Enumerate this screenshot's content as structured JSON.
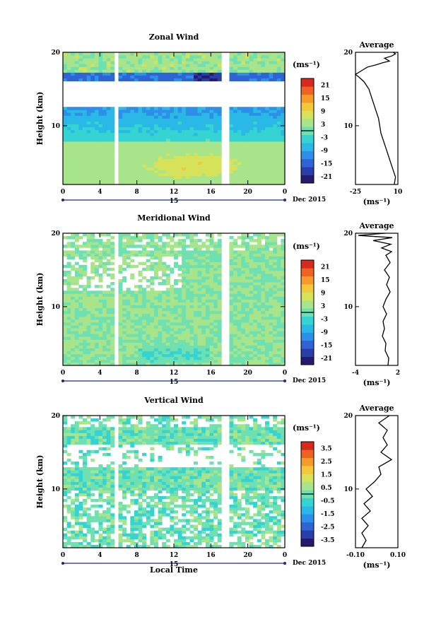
{
  "chart_data": [
    {
      "type": "heatmap",
      "title": "Zonal Wind",
      "ylabel": "Height (km)",
      "ylim": [
        2,
        20
      ],
      "y_ticks": [
        "20",
        "10"
      ],
      "xlim": [
        0,
        24
      ],
      "x_ticks": [
        "0",
        "4",
        "8",
        "12",
        "16",
        "20",
        "0"
      ],
      "date_day": "15",
      "date_label": "Dec 2015",
      "colorbar": {
        "unit": "(ms⁻¹)",
        "ticks": [
          "21",
          "15",
          "9",
          "3",
          "-3",
          "-9",
          "-15",
          "-21"
        ],
        "range": [
          -24,
          24
        ]
      },
      "profile": {
        "title": "Average",
        "yticks": [
          "20",
          "10"
        ],
        "xticks": [
          "-25",
          "10"
        ],
        "xlim": [
          -25,
          10
        ],
        "unit": "(ms⁻¹)",
        "points": [
          [
            7,
            2
          ],
          [
            8,
            3
          ],
          [
            6,
            4
          ],
          [
            4,
            5
          ],
          [
            2,
            6
          ],
          [
            0,
            7
          ],
          [
            -2,
            8
          ],
          [
            -4,
            9
          ],
          [
            -5,
            10
          ],
          [
            -6,
            11
          ],
          [
            -8,
            12
          ],
          [
            -10,
            13
          ],
          [
            -12,
            14
          ],
          [
            -14,
            15
          ],
          [
            -18,
            16
          ],
          [
            -22,
            16.6
          ],
          [
            -25,
            17
          ],
          [
            -20,
            17.5
          ],
          [
            -15,
            18
          ],
          [
            -8,
            18.3
          ],
          [
            -2,
            18.6
          ],
          [
            3,
            18.8
          ],
          [
            -1,
            19.2
          ],
          [
            5,
            19.5
          ],
          [
            8,
            19.8
          ],
          [
            6,
            20
          ]
        ]
      }
    },
    {
      "type": "heatmap",
      "title": "Meridional Wind",
      "ylabel": "Height (km)",
      "ylim": [
        2,
        20
      ],
      "y_ticks": [
        "20",
        "10"
      ],
      "xlim": [
        0,
        24
      ],
      "x_ticks": [
        "0",
        "4",
        "8",
        "12",
        "16",
        "20",
        "0"
      ],
      "date_day": "15",
      "date_label": "Dec 2015",
      "colorbar": {
        "unit": "(ms⁻¹)",
        "ticks": [
          "21",
          "15",
          "9",
          "3",
          "-3",
          "-9",
          "-15",
          "-21"
        ],
        "range": [
          -24,
          24
        ]
      },
      "profile": {
        "title": "Average",
        "yticks": [
          "20",
          "10"
        ],
        "xticks": [
          "-4",
          "2"
        ],
        "xlim": [
          -4,
          2
        ],
        "unit": "(ms⁻¹)",
        "points": [
          [
            0.6,
            2
          ],
          [
            0.7,
            3
          ],
          [
            0.2,
            4
          ],
          [
            0.3,
            5
          ],
          [
            -0.2,
            6
          ],
          [
            0.1,
            7
          ],
          [
            -0.1,
            8
          ],
          [
            0.4,
            9
          ],
          [
            -0.1,
            10
          ],
          [
            0.3,
            11
          ],
          [
            0.9,
            12
          ],
          [
            0.4,
            13
          ],
          [
            0.8,
            14
          ],
          [
            0.1,
            15
          ],
          [
            0.9,
            16
          ],
          [
            0.3,
            17
          ],
          [
            1.1,
            17.5
          ],
          [
            -0.3,
            18
          ],
          [
            1.0,
            18.5
          ],
          [
            -1.5,
            19
          ],
          [
            1.2,
            19.4
          ],
          [
            -3.6,
            19.7
          ],
          [
            0.2,
            20
          ]
        ]
      }
    },
    {
      "type": "heatmap",
      "title": "Vertical Wind",
      "ylabel": "Height (km)",
      "ylim": [
        2,
        20
      ],
      "y_ticks": [
        "20",
        "10"
      ],
      "xlim": [
        0,
        24
      ],
      "x_ticks": [
        "0",
        "4",
        "8",
        "12",
        "16",
        "20",
        "0"
      ],
      "date_day": "15",
      "date_label": "Dec 2015",
      "xlabel": "Local Time",
      "colorbar": {
        "unit": "(ms⁻¹)",
        "ticks": [
          "3.5",
          "2.5",
          "1.5",
          "0.5",
          "-0.5",
          "-1.5",
          "-2.5",
          "-3.5"
        ],
        "range": [
          -4,
          4
        ]
      },
      "profile": {
        "title": "Average",
        "yticks": [
          "20",
          "10"
        ],
        "xticks": [
          "-0.10",
          "0.10"
        ],
        "xlim": [
          -0.1,
          0.1
        ],
        "unit": "(ms⁻¹)",
        "points": [
          [
            -0.07,
            2
          ],
          [
            -0.05,
            3
          ],
          [
            -0.07,
            4
          ],
          [
            -0.04,
            5
          ],
          [
            -0.07,
            6
          ],
          [
            -0.03,
            7
          ],
          [
            -0.06,
            8
          ],
          [
            -0.02,
            9
          ],
          [
            -0.05,
            10
          ],
          [
            -0.01,
            11
          ],
          [
            0.02,
            12
          ],
          [
            0.01,
            13
          ],
          [
            0.07,
            14
          ],
          [
            0.02,
            15
          ],
          [
            0.05,
            16
          ],
          [
            0.03,
            17
          ],
          [
            0.05,
            18
          ],
          [
            0.01,
            19
          ],
          [
            0.06,
            20
          ]
        ]
      }
    }
  ]
}
